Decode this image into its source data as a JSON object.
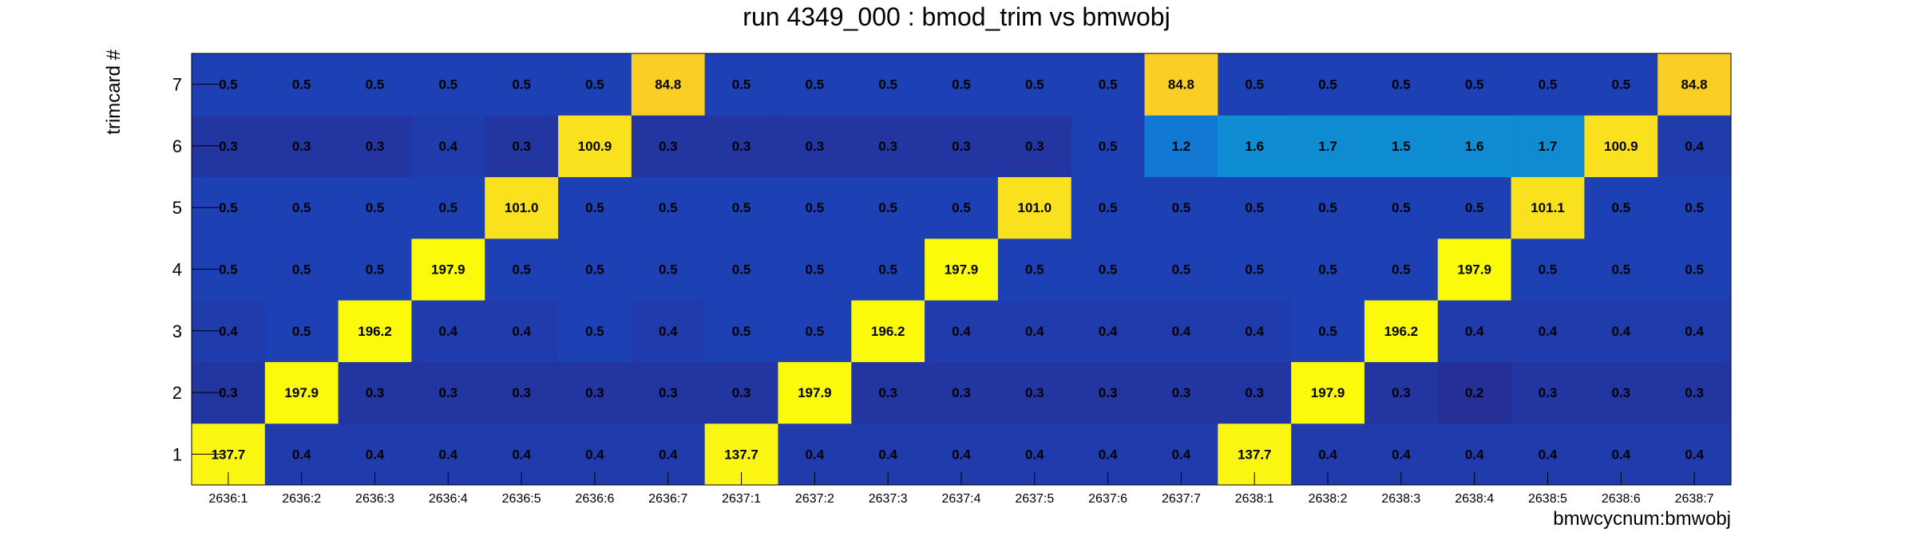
{
  "chart_data": {
    "type": "heatmap",
    "title": "run 4349_000 : bmod_trim vs bmwobj",
    "xlabel": "bmwcycnum:bmwobj",
    "ylabel": "trimcard #",
    "x_categories": [
      "2636:1",
      "2636:2",
      "2636:3",
      "2636:4",
      "2636:5",
      "2636:6",
      "2636:7",
      "2637:1",
      "2637:2",
      "2637:3",
      "2637:4",
      "2637:5",
      "2637:6",
      "2637:7",
      "2638:1",
      "2638:2",
      "2638:3",
      "2638:4",
      "2638:5",
      "2638:6",
      "2638:7"
    ],
    "y_categories": [
      "1",
      "2",
      "3",
      "4",
      "5",
      "6",
      "7"
    ],
    "values": [
      [
        137.7,
        0.4,
        0.4,
        0.4,
        0.4,
        0.4,
        0.4,
        137.7,
        0.4,
        0.4,
        0.4,
        0.4,
        0.4,
        0.4,
        137.7,
        0.4,
        0.4,
        0.4,
        0.4,
        0.4,
        0.4
      ],
      [
        0.3,
        197.9,
        0.3,
        0.3,
        0.3,
        0.3,
        0.3,
        0.3,
        197.9,
        0.3,
        0.3,
        0.3,
        0.3,
        0.3,
        0.3,
        197.9,
        0.3,
        0.2,
        0.3,
        0.3,
        0.3
      ],
      [
        0.4,
        0.5,
        196.2,
        0.4,
        0.4,
        0.5,
        0.4,
        0.5,
        0.5,
        196.2,
        0.4,
        0.4,
        0.4,
        0.4,
        0.4,
        0.5,
        196.2,
        0.4,
        0.4,
        0.4,
        0.4
      ],
      [
        0.5,
        0.5,
        0.5,
        197.9,
        0.5,
        0.5,
        0.5,
        0.5,
        0.5,
        0.5,
        197.9,
        0.5,
        0.5,
        0.5,
        0.5,
        0.5,
        0.5,
        197.9,
        0.5,
        0.5,
        0.5
      ],
      [
        0.5,
        0.5,
        0.5,
        0.5,
        101.0,
        0.5,
        0.5,
        0.5,
        0.5,
        0.5,
        0.5,
        101.0,
        0.5,
        0.5,
        0.5,
        0.5,
        0.5,
        0.5,
        101.1,
        0.5,
        0.5
      ],
      [
        0.3,
        0.3,
        0.3,
        0.4,
        0.3,
        100.9,
        0.3,
        0.3,
        0.3,
        0.3,
        0.3,
        0.3,
        0.5,
        1.2,
        1.6,
        1.7,
        1.5,
        1.6,
        1.7,
        100.9,
        0.4
      ],
      [
        0.5,
        0.5,
        0.5,
        0.5,
        0.5,
        0.5,
        84.8,
        0.5,
        0.5,
        0.5,
        0.5,
        0.5,
        0.5,
        84.8,
        0.5,
        0.5,
        0.5,
        0.5,
        0.5,
        0.5,
        84.8
      ]
    ],
    "grid": false,
    "legend": "none"
  }
}
